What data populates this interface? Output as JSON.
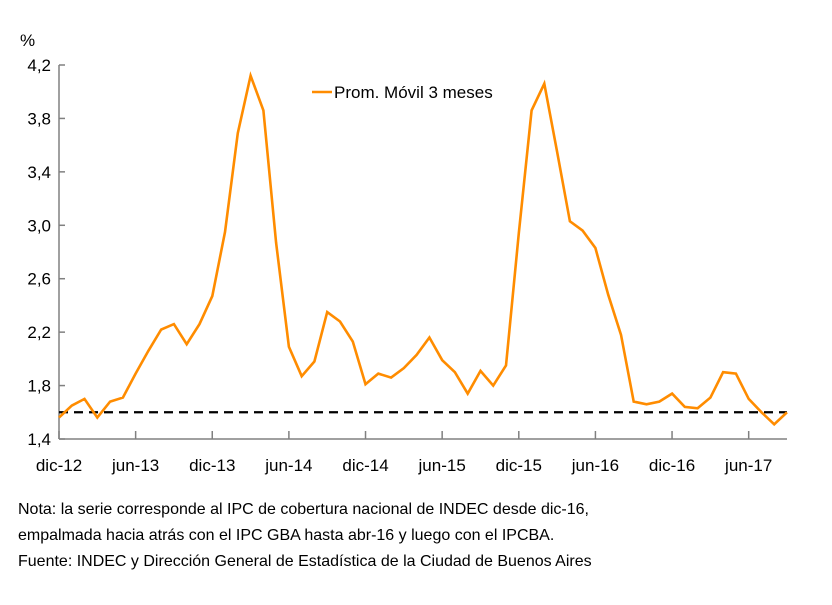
{
  "chart_data": {
    "type": "line",
    "title": "",
    "ylabel": "%",
    "xlabel": "",
    "ylim": [
      1.4,
      4.2
    ],
    "yticks": [
      "1,4",
      "1,8",
      "2,2",
      "2,6",
      "3,0",
      "3,4",
      "3,8",
      "4,2"
    ],
    "ytick_values": [
      1.4,
      1.8,
      2.2,
      2.6,
      3.0,
      3.4,
      3.8,
      4.2
    ],
    "xticks": [
      "dic-12",
      "jun-13",
      "dic-13",
      "jun-14",
      "dic-14",
      "jun-15",
      "dic-15",
      "jun-16",
      "dic-16",
      "jun-17"
    ],
    "xtick_month_index": [
      0,
      6,
      12,
      18,
      24,
      30,
      36,
      42,
      48,
      54
    ],
    "grid": false,
    "legend_position": "top-center",
    "x": [
      "dic-12",
      "ene-13",
      "feb-13",
      "mar-13",
      "abr-13",
      "may-13",
      "jun-13",
      "jul-13",
      "ago-13",
      "sep-13",
      "oct-13",
      "nov-13",
      "dic-13",
      "ene-14",
      "feb-14",
      "mar-14",
      "abr-14",
      "may-14",
      "jun-14",
      "jul-14",
      "ago-14",
      "sep-14",
      "oct-14",
      "nov-14",
      "dic-14",
      "ene-15",
      "feb-15",
      "mar-15",
      "abr-15",
      "may-15",
      "jun-15",
      "jul-15",
      "ago-15",
      "sep-15",
      "oct-15",
      "nov-15",
      "dic-15",
      "ene-16",
      "feb-16",
      "mar-16",
      "abr-16",
      "may-16",
      "jun-16",
      "jul-16",
      "ago-16",
      "sep-16",
      "oct-16",
      "nov-16",
      "dic-16",
      "ene-17",
      "feb-17",
      "mar-17",
      "abr-17",
      "may-17",
      "jun-17",
      "jul-17",
      "ago-17",
      "sep-17"
    ],
    "series": [
      {
        "name": "Prom. Móvil 3 meses",
        "color": "#FF8C00",
        "values": [
          1.56,
          1.65,
          1.7,
          1.56,
          1.68,
          1.71,
          1.89,
          2.06,
          2.22,
          2.26,
          2.11,
          2.26,
          2.47,
          2.95,
          3.69,
          4.12,
          3.86,
          2.87,
          2.09,
          1.87,
          1.98,
          2.35,
          2.28,
          2.13,
          1.81,
          1.89,
          1.86,
          1.93,
          2.03,
          2.16,
          1.99,
          1.9,
          1.74,
          1.91,
          1.8,
          1.95,
          2.94,
          3.86,
          4.06,
          3.55,
          3.03,
          2.96,
          2.83,
          2.48,
          2.18,
          1.68,
          1.66,
          1.68,
          1.74,
          1.64,
          1.63,
          1.71,
          1.9,
          1.89,
          1.7,
          1.6,
          1.51,
          1.6
        ]
      },
      {
        "name": "reference-line",
        "style": "dashed",
        "color": "#000000",
        "value": 1.6
      }
    ]
  },
  "labels": {
    "y_unit": "%",
    "legend": "Prom. Móvil 3 meses"
  },
  "notes": {
    "line1": "Nota: la serie corresponde  al IPC de cobertura nacional de INDEC desde dic-16,",
    "line2": "empalmada hacia atrás con el IPC GBA hasta abr-16 y luego con el IPCBA.",
    "line3": "Fuente: INDEC y Dirección General de Estadística de la Ciudad de Buenos Aires"
  }
}
